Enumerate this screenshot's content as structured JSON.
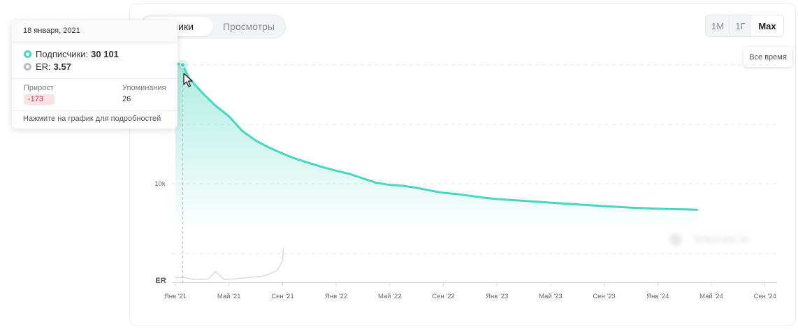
{
  "tabs": {
    "subscribers_label": "счики",
    "views_label": "Просмотры"
  },
  "range": {
    "m1": "1М",
    "y1": "1Г",
    "max": "Max",
    "hover_tooltip": "Все время"
  },
  "tooltip": {
    "date": "18 января, 2021",
    "subscribers_label": "Подписчики:",
    "subscribers_value": "30 101",
    "er_label": "ER:",
    "er_value": "3.57",
    "growth_label": "Прирост",
    "growth_value": "-173",
    "mentions_label": "Упоминания",
    "mentions_value": "26",
    "footer": "Нажмите на график для подробностей"
  },
  "watermark": "Telemetr.io",
  "colors": {
    "series": "#46d7bd",
    "er": "#d6d8dc",
    "growth_negative": "#c9323f"
  },
  "chart_data": {
    "type": "area",
    "x_ticks": [
      "Янв '21",
      "Май '21",
      "Сен '21",
      "Янв '22",
      "Май '22",
      "Сен '22",
      "Янв '23",
      "Май '23",
      "Сен '23",
      "Янв '24",
      "Май '24",
      "Сен '24"
    ],
    "y_tick_label": "10k",
    "y_tick_value": 10000,
    "er_axis_label": "ER",
    "grid": true,
    "series": [
      {
        "name": "Подписчики",
        "x": [
          "2021-01-01",
          "2021-01-18",
          "2021-02-01",
          "2021-03-01",
          "2021-04-01",
          "2021-05-01",
          "2021-06-01",
          "2021-07-01",
          "2021-08-01",
          "2021-09-01",
          "2021-10-01",
          "2021-11-01",
          "2021-12-01",
          "2022-01-01",
          "2022-02-01",
          "2022-03-01",
          "2022-04-01",
          "2022-05-01",
          "2022-06-01",
          "2022-07-01",
          "2022-08-01",
          "2022-09-01",
          "2022-10-01",
          "2022-11-01",
          "2022-12-01",
          "2023-01-01",
          "2023-03-01",
          "2023-05-01",
          "2023-07-01",
          "2023-09-01",
          "2023-11-01",
          "2024-01-01",
          "2024-03-01",
          "2024-04-01"
        ],
        "values": [
          30400,
          30101,
          27900,
          25400,
          23200,
          21400,
          18900,
          17300,
          16100,
          15100,
          14200,
          13500,
          12800,
          12200,
          11650,
          10900,
          10150,
          9800,
          9650,
          9300,
          8850,
          8450,
          8250,
          7950,
          7650,
          7400,
          7100,
          6800,
          6500,
          6200,
          5950,
          5750,
          5650,
          5600
        ]
      },
      {
        "name": "ER",
        "x": [
          "2021-01-01",
          "2021-01-18",
          "2021-02-15",
          "2021-03-15",
          "2021-04-01",
          "2021-04-20",
          "2021-05-15",
          "2021-06-15",
          "2021-07-15",
          "2021-08-01",
          "2021-08-20",
          "2021-09-01",
          "2021-09-03"
        ],
        "values": [
          3.2,
          3.57,
          2.0,
          2.4,
          8.0,
          2.1,
          2.5,
          3.5,
          4.5,
          6.0,
          9.0,
          16.0,
          25.0
        ]
      }
    ]
  }
}
